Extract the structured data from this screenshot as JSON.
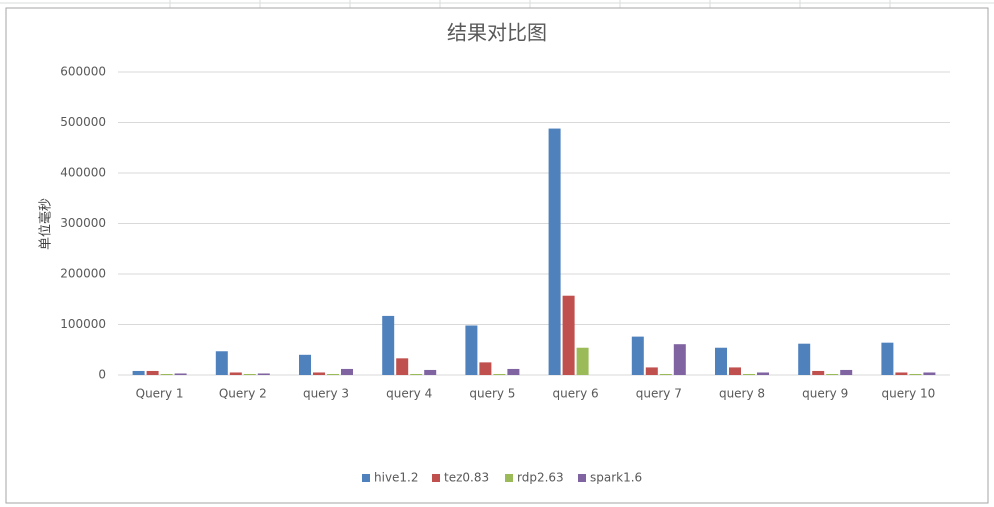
{
  "chart_data": {
    "type": "bar",
    "title": "结果对比图",
    "y_label": "单位毫秒",
    "categories": [
      "Query 1",
      "Query 2",
      "query 3",
      "query 4",
      "query 5",
      "query 6",
      "query 7",
      "query 8",
      "query 9",
      "query 10"
    ],
    "series": [
      {
        "name": "hive1.2",
        "color": "#4f81bd",
        "values": [
          8000,
          47000,
          40000,
          117000,
          98000,
          488000,
          76000,
          54000,
          62000,
          64000
        ]
      },
      {
        "name": "tez0.83",
        "color": "#c0504d",
        "values": [
          8000,
          5000,
          5000,
          33000,
          25000,
          157000,
          15000,
          15000,
          8000,
          5000
        ]
      },
      {
        "name": "rdp2.63",
        "color": "#9bbb59",
        "values": [
          2000,
          2000,
          2000,
          2000,
          2000,
          54000,
          2000,
          2000,
          2000,
          2000
        ]
      },
      {
        "name": "spark1.6",
        "color": "#8064a2",
        "values": [
          3000,
          3000,
          12000,
          10000,
          12000,
          0,
          61000,
          5000,
          10000,
          5000
        ]
      }
    ],
    "ylim": [
      0,
      600000
    ],
    "yticks": [
      0,
      100000,
      200000,
      300000,
      400000,
      500000,
      600000
    ],
    "grid": true,
    "legend": "bottom"
  }
}
